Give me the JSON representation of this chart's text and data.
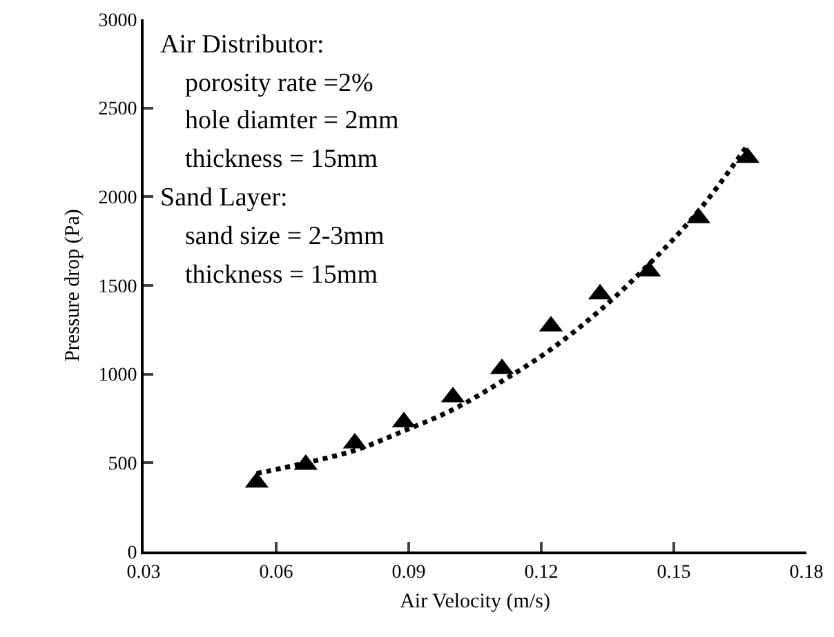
{
  "chart_data": {
    "type": "scatter",
    "xlabel": "Air Velocity (m/s)",
    "ylabel": "Pressure drop (Pa)",
    "x": [
      0.0556,
      0.0667,
      0.0778,
      0.0889,
      0.1,
      0.1111,
      0.1222,
      0.1333,
      0.1444,
      0.1556,
      0.1667
    ],
    "series": [
      {
        "color": "#000000",
        "marker": "triangle",
        "values": [
          390,
          490,
          610,
          730,
          870,
          1030,
          1270,
          1450,
          1580,
          1880,
          2220
        ]
      },
      {
        "type": "line",
        "color": "#000000",
        "line_style": "dotted",
        "marker": "none",
        "x": [
          0.0556,
          0.0667,
          0.0778,
          0.0889,
          0.1,
          0.1111,
          0.1222,
          0.1333,
          0.1444,
          0.1556,
          0.1667
        ],
        "values": [
          440,
          500,
          570,
          680,
          800,
          960,
          1140,
          1360,
          1620,
          1920,
          2290
        ]
      }
    ],
    "xlim": [
      0.03,
      0.18
    ],
    "xticks": [
      {
        "value": 0.03,
        "label": "0.03"
      },
      {
        "value": 0.06,
        "label": "0.06"
      },
      {
        "value": 0.09,
        "label": "0.09"
      },
      {
        "value": 0.12,
        "label": "0.12"
      },
      {
        "value": 0.15,
        "label": "0.15"
      },
      {
        "value": 0.18,
        "label": "0.18"
      }
    ],
    "ylim": [
      0,
      3000
    ],
    "yticks": [
      0,
      500,
      1000,
      1500,
      2000,
      2500,
      3000
    ],
    "grid": false,
    "annotations": [
      "Air Distributor:",
      "  porosity rate =2%",
      "  hole diamter = 2mm",
      "  thickness = 15mm",
      "Sand Layer:",
      "  sand size = 2-3mm",
      "  thickness = 15mm"
    ]
  }
}
